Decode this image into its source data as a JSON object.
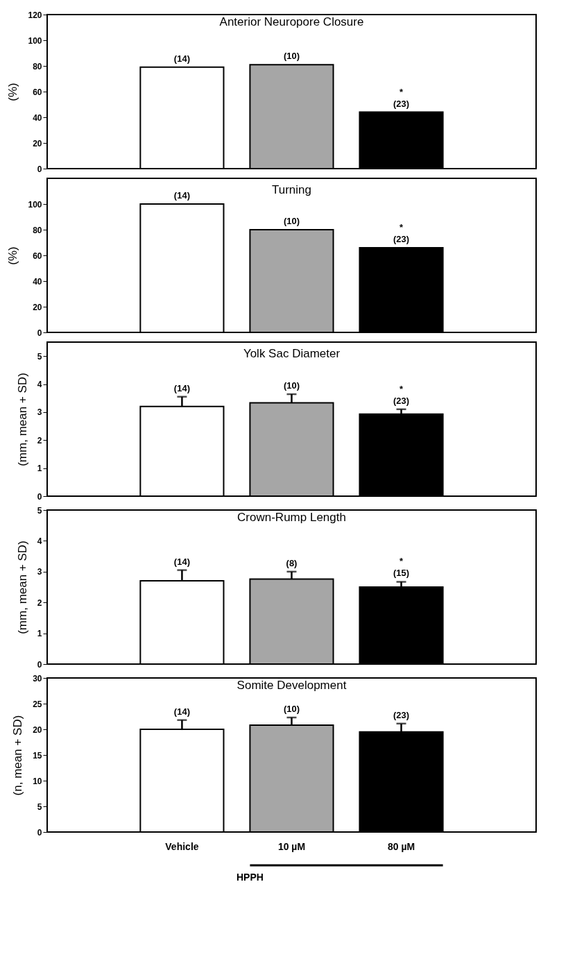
{
  "chart_data": [
    {
      "type": "bar",
      "title": "Anterior Neuropore Closure",
      "ylabel": "(%)",
      "categories": [
        "Vehicle",
        "10 µM",
        "80 µM"
      ],
      "colors": [
        "#ffffff",
        "#a6a6a6",
        "#000000"
      ],
      "values": [
        79,
        81,
        44
      ],
      "ylim": [
        0,
        120
      ],
      "yticks": [
        0,
        20,
        40,
        60,
        80,
        100,
        120
      ],
      "grid": false,
      "tick_labels": "y",
      "annotations": [
        {
          "text": "(14)",
          "x": "Vehicle",
          "y": 79
        },
        {
          "text": "(10)",
          "x": "10 µM",
          "y": 81
        },
        {
          "text": "*",
          "x": "80 µM",
          "y": 44
        },
        {
          "text": "(23)",
          "x": "80 µM",
          "y": 44
        }
      ]
    },
    {
      "type": "bar",
      "title": "Turning",
      "ylabel": "(%)",
      "categories": [
        "Vehicle",
        "10 µM",
        "80 µM"
      ],
      "colors": [
        "#ffffff",
        "#a6a6a6",
        "#000000"
      ],
      "values": [
        100,
        80,
        66
      ],
      "ylim": [
        0,
        120
      ],
      "yticks": [
        0,
        20,
        40,
        60,
        80,
        100
      ],
      "grid": false,
      "tick_labels": "y",
      "annotations": [
        {
          "text": "(14)",
          "x": "Vehicle",
          "y": 100
        },
        {
          "text": "(10)",
          "x": "10 µM",
          "y": 80
        },
        {
          "text": "*",
          "x": "80 µM",
          "y": 66
        },
        {
          "text": "(23)",
          "x": "80 µM",
          "y": 66
        }
      ]
    },
    {
      "type": "bar",
      "title": "Yolk Sac Diameter",
      "ylabel": "(mm, mean + SD)",
      "categories": [
        "Vehicle",
        "10 µM",
        "80 µM"
      ],
      "colors": [
        "#ffffff",
        "#a6a6a6",
        "#000000"
      ],
      "values": [
        3.2,
        3.33,
        2.93
      ],
      "errors": [
        [
          3.2,
          3.55
        ],
        [
          3.33,
          3.64
        ],
        [
          2.93,
          3.1
        ]
      ],
      "ylim": [
        0,
        5.5
      ],
      "yticks": [
        0,
        1,
        2,
        3,
        4,
        5
      ],
      "grid": false,
      "tick_labels": "y",
      "annotations": [
        {
          "text": "(14)",
          "x": "Vehicle",
          "y": 3.2
        },
        {
          "text": "(10)",
          "x": "10 µM",
          "y": 3.33
        },
        {
          "text": "*",
          "x": "80 µM",
          "y": 2.93
        },
        {
          "text": "(23)",
          "x": "80 µM",
          "y": 2.93
        }
      ]
    },
    {
      "type": "bar",
      "title": "Crown-Rump Length",
      "ylabel": "(mm, mean + SD)",
      "categories": [
        "Vehicle",
        "10 µM",
        "80 µM"
      ],
      "colors": [
        "#ffffff",
        "#a6a6a6",
        "#000000"
      ],
      "values": [
        2.7,
        2.76,
        2.5
      ],
      "errors": [
        [
          2.7,
          3.05
        ],
        [
          2.76,
          3.0
        ],
        [
          2.5,
          2.67
        ]
      ],
      "ylim": [
        0,
        5
      ],
      "yticks": [
        0,
        1,
        2,
        3,
        4,
        5
      ],
      "grid": false,
      "tick_labels": "y",
      "annotations": [
        {
          "text": "(14)",
          "x": "Vehicle",
          "y": 2.7
        },
        {
          "text": "(8)",
          "x": "10 µM",
          "y": 2.76
        },
        {
          "text": "*",
          "x": "80 µM",
          "y": 2.5
        },
        {
          "text": "(15)",
          "x": "80 µM",
          "y": 2.5
        }
      ]
    },
    {
      "type": "bar",
      "title": "Somite Development",
      "ylabel": "(n, mean + SD)",
      "categories": [
        "Vehicle",
        "10 µM",
        "80 µM"
      ],
      "colors": [
        "#ffffff",
        "#a6a6a6",
        "#000000"
      ],
      "values": [
        20,
        20.8,
        19.5
      ],
      "errors": [
        [
          20,
          21.8
        ],
        [
          20.8,
          22.3
        ],
        [
          19.5,
          21.1
        ]
      ],
      "ylim": [
        0,
        30
      ],
      "yticks": [
        0,
        5,
        10,
        15,
        20,
        25,
        30
      ],
      "grid": false,
      "annotations": [
        {
          "text": "(14)",
          "x": "Vehicle",
          "y": 20
        },
        {
          "text": "(10)",
          "x": "10 µM",
          "y": 20.8
        },
        {
          "text": "(23)",
          "x": "80 µM",
          "y": 19.5
        },
        "HPPH"
      ]
    }
  ]
}
